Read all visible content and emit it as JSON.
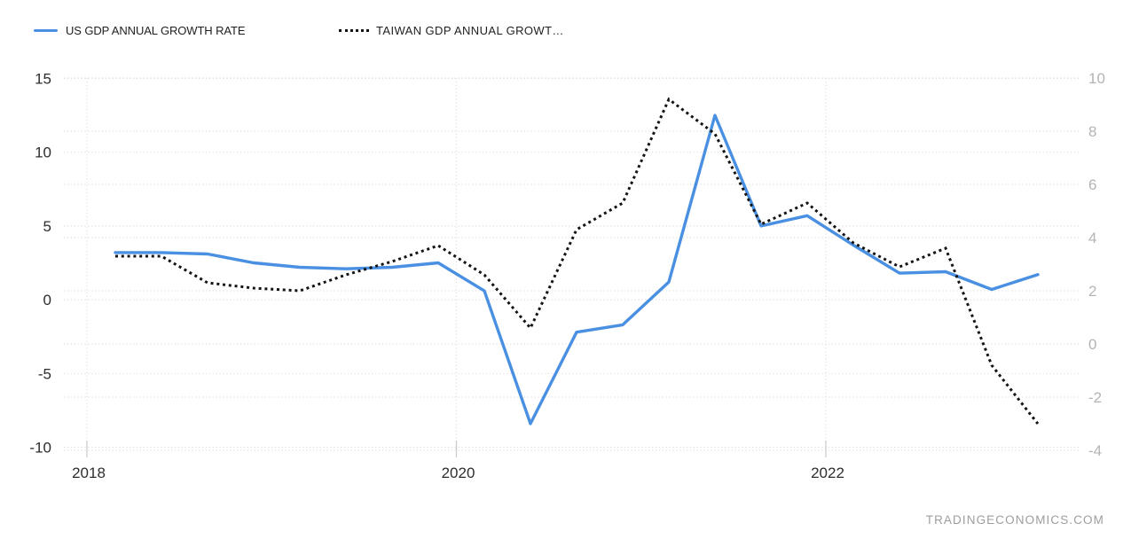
{
  "legend": [
    {
      "label": "US GDP ANNUAL GROWTH RATE",
      "color": "#4a90e2",
      "style": "solid"
    },
    {
      "label": "TAIWAN GDP ANNUAL GROWT…",
      "color": "#141414",
      "style": "dotted"
    }
  ],
  "attribution": "TRADINGECONOMICS.COM",
  "chart_data": {
    "type": "line",
    "x": [
      "2018 Q1",
      "2018 Q2",
      "2018 Q3",
      "2018 Q4",
      "2019 Q1",
      "2019 Q2",
      "2019 Q3",
      "2019 Q4",
      "2020 Q1",
      "2020 Q2",
      "2020 Q3",
      "2020 Q4",
      "2021 Q1",
      "2021 Q2",
      "2021 Q3",
      "2021 Q4",
      "2022 Q1",
      "2022 Q2",
      "2022 Q3",
      "2022 Q4",
      "2023 Q1"
    ],
    "x_axis_tick_labels": [
      "2018",
      "2020",
      "2022"
    ],
    "left_axis": {
      "ticks": [
        15,
        10,
        5,
        0,
        -5,
        -10
      ],
      "range": [
        -10,
        15
      ],
      "label_color": "#2d2d2d"
    },
    "right_axis": {
      "ticks": [
        10,
        8,
        6,
        4,
        2,
        0,
        -2,
        -4
      ],
      "range": [
        -4,
        10
      ],
      "label_color": "#b4b4b4"
    },
    "grid": {
      "horizontal": "dotted lines at every left and right axis tick",
      "vertical": "dotted lines at labeled years",
      "color": "#e0e0e0"
    },
    "legend_position": "top-left",
    "series": [
      {
        "name": "US GDP ANNUAL GROWTH RATE",
        "axis": "left",
        "color": "#4a90e2",
        "line_style": "solid",
        "values": [
          3.2,
          3.2,
          3.1,
          2.5,
          2.2,
          2.1,
          2.2,
          2.5,
          0.6,
          -8.4,
          -2.2,
          -1.7,
          1.2,
          12.5,
          5.0,
          5.7,
          3.7,
          1.8,
          1.9,
          0.7,
          1.7
        ]
      },
      {
        "name": "TAIWAN GDP ANNUAL GROWTH RATE",
        "axis": "right",
        "color": "#141414",
        "line_style": "dotted",
        "values": [
          3.3,
          3.3,
          2.3,
          2.1,
          2.0,
          2.6,
          3.1,
          3.7,
          2.6,
          0.6,
          4.3,
          5.3,
          9.2,
          7.9,
          4.5,
          5.3,
          3.8,
          2.9,
          3.6,
          -0.8,
          -3.0
        ]
      }
    ]
  }
}
